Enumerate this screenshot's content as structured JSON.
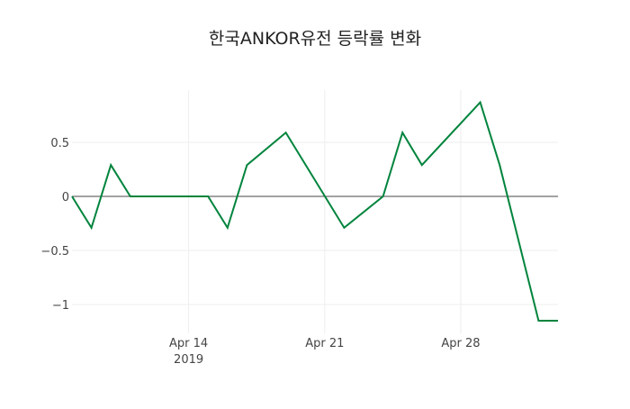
{
  "chart_data": {
    "type": "line",
    "title": "한국ANKOR유전 등락률 변화",
    "xlabel": "",
    "ylabel": "",
    "x": [
      "2019-04-08",
      "2019-04-09",
      "2019-04-10",
      "2019-04-11",
      "2019-04-15",
      "2019-04-16",
      "2019-04-17",
      "2019-04-19",
      "2019-04-22",
      "2019-04-24",
      "2019-04-25",
      "2019-04-26",
      "2019-04-29",
      "2019-04-30",
      "2019-05-02",
      "2019-05-03"
    ],
    "series": [
      {
        "name": "등락률",
        "color": "#00843D",
        "values": [
          0,
          -0.29,
          0.29,
          0,
          0,
          -0.29,
          0.29,
          0.59,
          -0.29,
          0,
          0.59,
          0.29,
          0.87,
          0.29,
          -1.15,
          -1.15
        ]
      }
    ],
    "xrange": [
      "2019-04-08",
      "2019-05-03"
    ],
    "ylim": [
      -1.25,
      0.97
    ],
    "yticks": [
      0.5,
      0,
      -0.5,
      -1
    ],
    "ytick_labels": [
      "0.5",
      "0",
      "−0.5",
      "−1"
    ],
    "xticks": [
      "2019-04-14",
      "2019-04-21",
      "2019-04-28"
    ],
    "xtick_labels": [
      "Apr 14",
      "Apr 21",
      "Apr 28"
    ],
    "xtick_sublabel": "2019",
    "grid": true,
    "legend": "none"
  }
}
